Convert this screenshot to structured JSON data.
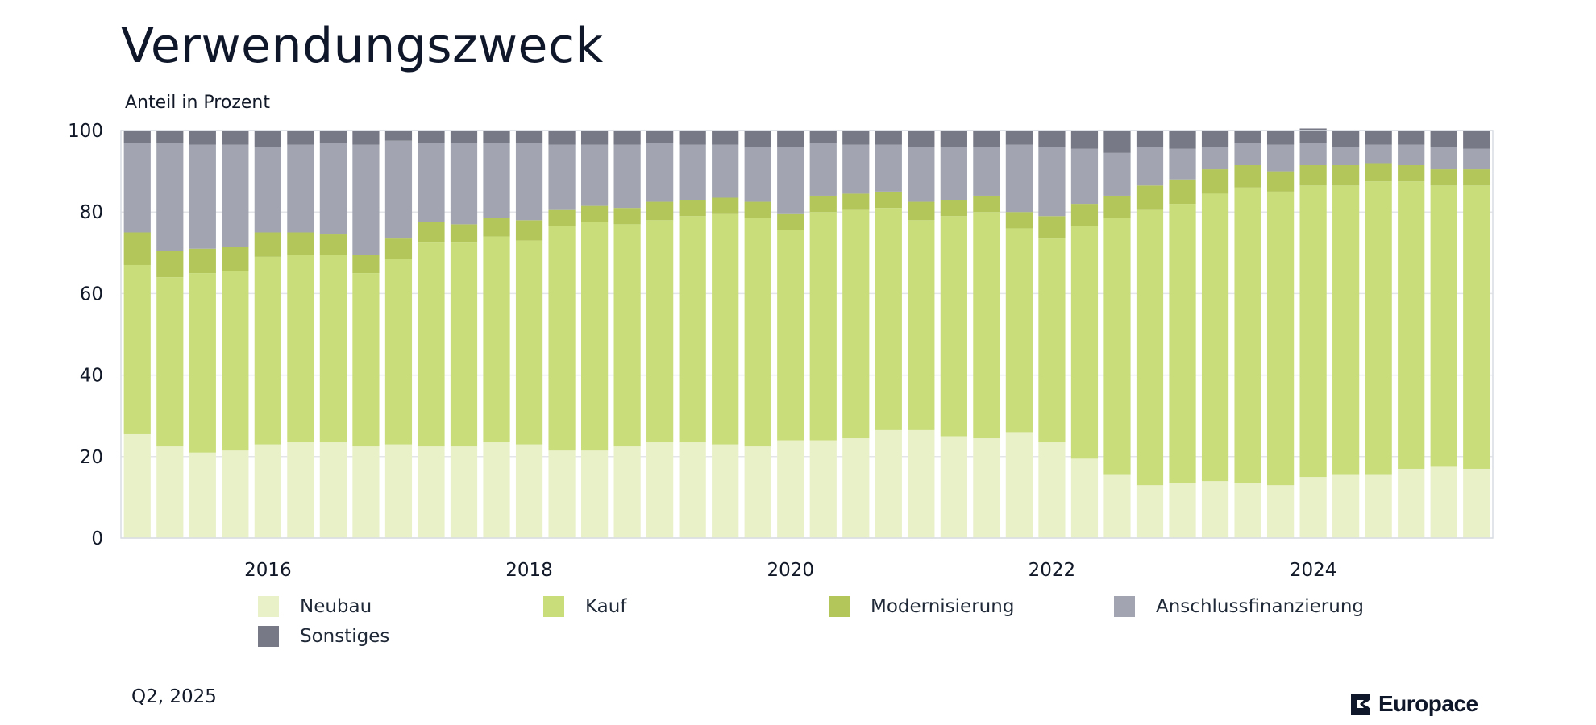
{
  "header": {
    "title": "Verwendungszweck",
    "subtitle": "Anteil in Prozent"
  },
  "footer": {
    "date": "Q2, 2025",
    "brand": "Europace"
  },
  "chart_data": {
    "type": "bar",
    "stacked": true,
    "ylim": [
      0,
      100
    ],
    "yticks": [
      0,
      20,
      40,
      60,
      80,
      100
    ],
    "xticks": [
      "2016",
      "2018",
      "2020",
      "2022",
      "2024"
    ],
    "xtick_category_positions": [
      4.5,
      12.5,
      20.5,
      28.5,
      36.5
    ],
    "grid": true,
    "legend_position": "bottom",
    "categories": [
      "Q1 2015",
      "Q2 2015",
      "Q3 2015",
      "Q4 2015",
      "Q1 2016",
      "Q2 2016",
      "Q3 2016",
      "Q4 2016",
      "Q1 2017",
      "Q2 2017",
      "Q3 2017",
      "Q4 2017",
      "Q1 2018",
      "Q2 2018",
      "Q3 2018",
      "Q4 2018",
      "Q1 2019",
      "Q2 2019",
      "Q3 2019",
      "Q4 2019",
      "Q1 2020",
      "Q2 2020",
      "Q3 2020",
      "Q4 2020",
      "Q1 2021",
      "Q2 2021",
      "Q3 2021",
      "Q4 2021",
      "Q1 2022",
      "Q2 2022",
      "Q3 2022",
      "Q4 2022",
      "Q1 2023",
      "Q2 2023",
      "Q3 2023",
      "Q4 2023",
      "Q1 2024",
      "Q2 2024",
      "Q3 2024",
      "Q4 2024",
      "Q1 2025",
      "Q2 2025"
    ],
    "series": [
      {
        "name": "Neubau",
        "color": "#e9f1c9",
        "values": [
          25.5,
          22.5,
          21,
          21.5,
          23,
          23.5,
          23.5,
          22.5,
          23,
          22.5,
          22.5,
          23.5,
          23,
          21.5,
          21.5,
          22.5,
          23.5,
          23.5,
          23,
          22.5,
          24,
          24,
          24.5,
          26.5,
          26.5,
          25,
          24.5,
          26,
          23.5,
          19.5,
          15.5,
          13,
          13.5,
          14,
          13.5,
          13,
          15,
          15.5,
          15.5,
          17,
          17.5,
          17
        ]
      },
      {
        "name": "Kauf",
        "color": "#c9de7b",
        "values": [
          41.5,
          41.5,
          44,
          44,
          46,
          46,
          46,
          42.5,
          45.5,
          50,
          50,
          50.5,
          50,
          55,
          56,
          54.5,
          54.5,
          55.5,
          56.5,
          56,
          51.5,
          56,
          56,
          54.5,
          51.5,
          54,
          55.5,
          50,
          50,
          57,
          63,
          67.5,
          68.5,
          70.5,
          72.5,
          72,
          71.5,
          71,
          72,
          70.5,
          69,
          69.5
        ]
      },
      {
        "name": "Modernisierung",
        "color": "#b2c65a",
        "values": [
          8,
          6.5,
          6,
          6,
          6,
          5.5,
          5,
          4.5,
          5,
          5,
          4.5,
          4.5,
          5,
          4,
          4,
          4,
          4.5,
          4,
          4,
          4,
          4,
          4,
          4,
          4,
          4.5,
          4,
          4,
          4,
          5.5,
          5.5,
          5.5,
          6,
          6,
          6,
          5.5,
          5,
          5,
          5,
          4.5,
          4,
          4,
          4
        ]
      },
      {
        "name": "Anschlussfinanzierung",
        "color": "#a2a5b1",
        "values": [
          22,
          26.5,
          25.5,
          25,
          21,
          21.5,
          22.5,
          27,
          24,
          19.5,
          20,
          18.5,
          19,
          16,
          15,
          15.5,
          14.5,
          13.5,
          13,
          13.5,
          16.5,
          13,
          12,
          11.5,
          13.5,
          13,
          12,
          16.5,
          17,
          13.5,
          10.5,
          9.5,
          7.5,
          5.5,
          5.5,
          6.5,
          5.5,
          4.5,
          4.5,
          5,
          5.5,
          5
        ]
      },
      {
        "name": "Sonstiges",
        "color": "#777986",
        "values": [
          3,
          3,
          3.5,
          3.5,
          4,
          3.5,
          3,
          3.5,
          2.5,
          3,
          3,
          3,
          3,
          3.5,
          3.5,
          3.5,
          3,
          3.5,
          3.5,
          4,
          4,
          3,
          3.5,
          3.5,
          4,
          4,
          4,
          3.5,
          4,
          4.5,
          5.5,
          4,
          4.5,
          4,
          3,
          3.5,
          3.5,
          4,
          3.5,
          3.5,
          4,
          4.5
        ]
      }
    ]
  }
}
